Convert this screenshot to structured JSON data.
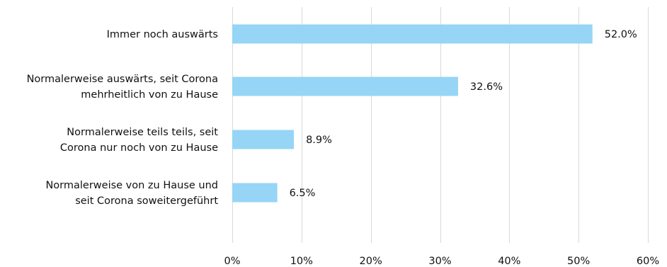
{
  "chart_data": {
    "type": "bar",
    "orientation": "horizontal",
    "categories": [
      [
        "Immer noch auswärts"
      ],
      [
        "Normalerweise auswärts, seit Corona",
        "mehrheitlich von zu Hause"
      ],
      [
        "Normalerweise teils teils, seit",
        "Corona nur noch von zu Hause"
      ],
      [
        "Normalerweise von zu Hause und",
        "seit Corona soweitergeführt"
      ]
    ],
    "values": [
      52.0,
      32.6,
      8.9,
      6.5
    ],
    "value_labels": [
      "52.0%",
      "32.6%",
      "8.9%",
      "6.5%"
    ],
    "xlim": [
      0,
      60
    ],
    "x_ticks": [
      0,
      10,
      20,
      30,
      40,
      50,
      60
    ],
    "x_tick_labels": [
      "0%",
      "10%",
      "20%",
      "30%",
      "40%",
      "50%",
      "60%"
    ],
    "grid": "vertical",
    "bar_color": "#96d5f5",
    "title": "",
    "xlabel": "",
    "ylabel": ""
  }
}
